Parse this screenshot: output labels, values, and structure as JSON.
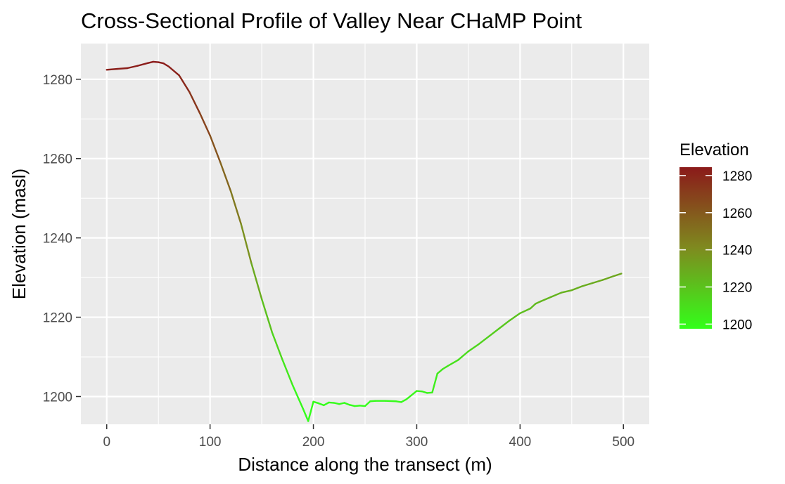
{
  "chart_data": {
    "type": "line",
    "title": "Cross-Sectional Profile of Valley Near CHaMP Point",
    "xlabel": "Distance along the transect (m)",
    "ylabel": "Elevation (masl)",
    "xlim": [
      -25,
      525
    ],
    "ylim": [
      1193,
      1289
    ],
    "x_ticks": [
      0,
      100,
      200,
      300,
      400,
      500
    ],
    "y_ticks": [
      1200,
      1220,
      1240,
      1260,
      1280
    ],
    "x_tick_labels": [
      "0",
      "100",
      "200",
      "300",
      "400",
      "500"
    ],
    "y_tick_labels": [
      "1200",
      "1220",
      "1240",
      "1260",
      "1280"
    ],
    "grid": true,
    "legend": {
      "title": "Elevation",
      "placement": "right",
      "type": "colorbar",
      "range": [
        1197.5,
        1284.5
      ],
      "colors": {
        "low": "#33ff1a",
        "mid": "#7f8a1f",
        "high": "#8b1a1a"
      },
      "breaks": [
        1200,
        1220,
        1240,
        1260,
        1280
      ],
      "labels": [
        "1200",
        "1220",
        "1240",
        "1260",
        "1280"
      ]
    },
    "series": [
      {
        "x": [
          0,
          10,
          20,
          30,
          40,
          45,
          50,
          55,
          60,
          70,
          80,
          90,
          100,
          110,
          120,
          130,
          140,
          150,
          160,
          170,
          180,
          190,
          195,
          200,
          205,
          210,
          215,
          220,
          225,
          230,
          235,
          240,
          245,
          250,
          255,
          260,
          270,
          280,
          285,
          290,
          300,
          305,
          310,
          315,
          320,
          325,
          330,
          340,
          350,
          360,
          370,
          380,
          390,
          400,
          410,
          415,
          420,
          430,
          440,
          450,
          460,
          470,
          480,
          490,
          498
        ],
        "y": [
          1282.4,
          1282.6,
          1282.8,
          1283.4,
          1284.1,
          1284.4,
          1284.3,
          1284.0,
          1283.2,
          1281.0,
          1276.8,
          1271.5,
          1265.8,
          1259.0,
          1251.8,
          1243.5,
          1233.6,
          1224.6,
          1216.2,
          1209.3,
          1202.8,
          1196.9,
          1193.8,
          1198.7,
          1198.3,
          1197.8,
          1198.5,
          1198.4,
          1198.1,
          1198.4,
          1197.9,
          1197.6,
          1197.7,
          1197.6,
          1198.8,
          1198.9,
          1198.9,
          1198.8,
          1198.6,
          1199.3,
          1201.4,
          1201.3,
          1200.9,
          1201.0,
          1205.8,
          1206.9,
          1207.7,
          1209.2,
          1211.4,
          1213.2,
          1215.2,
          1217.2,
          1219.2,
          1221.0,
          1222.2,
          1223.4,
          1224.0,
          1225.1,
          1226.2,
          1226.8,
          1227.8,
          1228.6,
          1229.4,
          1230.3,
          1231.0
        ]
      }
    ]
  }
}
